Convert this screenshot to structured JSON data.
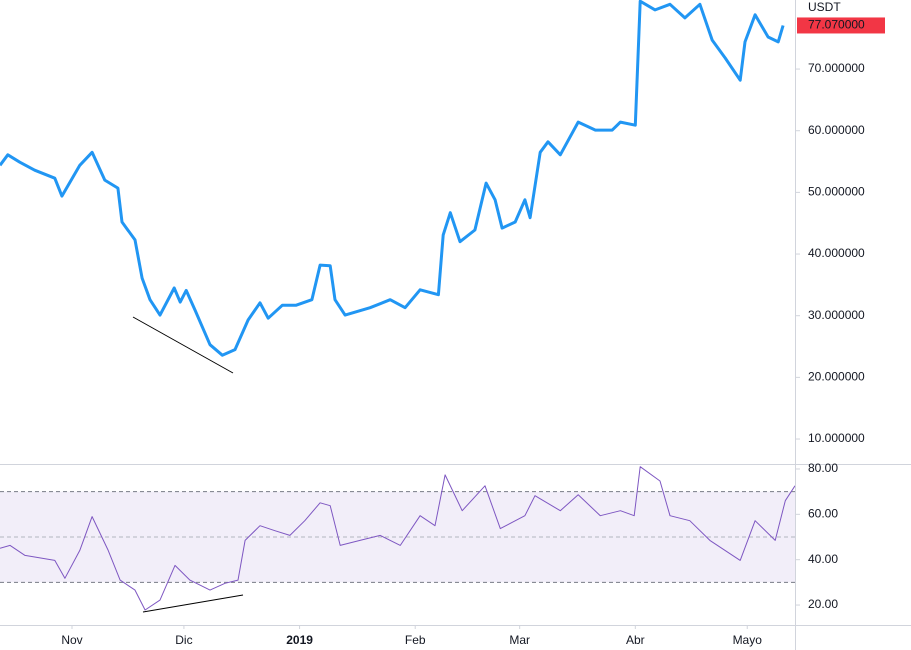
{
  "chart_data": [
    {
      "type": "line",
      "currency": "USDT",
      "last_value_label": "77.070000",
      "color": "#2196f3",
      "xlim": [
        -19.3,
        193.8
      ],
      "ylim": [
        5.95,
        81.2
      ],
      "yticks": [
        {
          "value": 10,
          "label": "10.000000"
        },
        {
          "value": 20,
          "label": "20.000000"
        },
        {
          "value": 30,
          "label": "30.000000"
        },
        {
          "value": 40,
          "label": "40.000000"
        },
        {
          "value": 50,
          "label": "50.000000"
        },
        {
          "value": 60,
          "label": "60.000000"
        },
        {
          "value": 70,
          "label": "70.000000"
        }
      ],
      "x": [
        -19.3,
        -17.2,
        -14,
        -10,
        -4.6,
        -2.7,
        2.1,
        5.4,
        8.8,
        12.3,
        13.4,
        16.9,
        18.8,
        20.9,
        23.6,
        27.4,
        29,
        30.6,
        33,
        37,
        40.3,
        43.7,
        47.2,
        50.4,
        52.6,
        56.4,
        60.1,
        64.3,
        66.5,
        69.2,
        70.5,
        73.2,
        79.9,
        85.3,
        89.3,
        93.3,
        98.2,
        99.5,
        101.4,
        104,
        108,
        111,
        113.4,
        115.3,
        118.8,
        121.4,
        122.8,
        125.5,
        127.6,
        130.9,
        135.7,
        140.3,
        144.8,
        147,
        151,
        152.3,
        156.3,
        160.3,
        164.3,
        168.3,
        171.6,
        175.1,
        179.1,
        180.4,
        183.1,
        186.6,
        189.3,
        190.6
      ],
      "values": [
        54.4,
        56.1,
        54.9,
        53.6,
        52.3,
        49.4,
        54.4,
        56.5,
        52.0,
        50.7,
        45.2,
        42.3,
        36.1,
        32.6,
        30.1,
        34.5,
        32.2,
        34.1,
        30.9,
        25.3,
        23.6,
        24.5,
        29.3,
        32.1,
        29.6,
        31.7,
        31.7,
        32.6,
        38.2,
        38.1,
        32.6,
        30.1,
        31.3,
        32.6,
        31.3,
        34.2,
        33.4,
        43.1,
        46.7,
        42.0,
        43.9,
        51.5,
        48.8,
        44.2,
        45.2,
        48.8,
        45.9,
        56.5,
        58.2,
        56.1,
        61.4,
        60.1,
        60.1,
        61.4,
        60.9,
        81,
        79.6,
        80.5,
        78.3,
        80.5,
        74.7,
        71.8,
        68.2,
        74.4,
        78.8,
        75.2,
        74.4,
        77.07
      ]
    },
    {
      "type": "line",
      "color": "#7e57c2",
      "band_fill": "#7e57c2",
      "bands": [
        30,
        70
      ],
      "midline": 50,
      "xlim": [
        -19.3,
        193.8
      ],
      "ylim": [
        11.2,
        81.75
      ],
      "yticks": [
        {
          "value": 20,
          "label": "20.00"
        },
        {
          "value": 40,
          "label": "40.00"
        },
        {
          "value": 60,
          "label": "60.00"
        },
        {
          "value": 80,
          "label": "80.00"
        }
      ],
      "xticks": [
        {
          "value": 0,
          "label": "Nov"
        },
        {
          "value": 30,
          "label": "Dic"
        },
        {
          "value": 61,
          "label": "2019"
        },
        {
          "value": 92,
          "label": "Feb"
        },
        {
          "value": 120,
          "label": "Mar"
        },
        {
          "value": 151,
          "label": "Abr"
        },
        {
          "value": 181,
          "label": "Mayo"
        }
      ],
      "x": [
        -19.3,
        -16.6,
        -12.6,
        -4.6,
        -1.9,
        2.1,
        5.4,
        9.7,
        12.9,
        16.9,
        19.6,
        23.6,
        27.6,
        31.6,
        37,
        41,
        44.5,
        46.4,
        50.4,
        54.4,
        58.4,
        62.4,
        66.5,
        69.2,
        71.9,
        77.2,
        82.6,
        88,
        93.3,
        97.3,
        100,
        104.6,
        110.7,
        114.8,
        121.4,
        124.1,
        130.9,
        135.7,
        141.6,
        147,
        150.7,
        152.3,
        157.6,
        160.3,
        165.6,
        171,
        179.1,
        183.1,
        188.5,
        191.2,
        193.8
      ],
      "values": [
        45,
        46.3,
        41.9,
        39.7,
        31.8,
        44.1,
        59,
        44.1,
        31,
        26.6,
        17.8,
        22.2,
        37.5,
        31,
        26.6,
        29.6,
        31,
        48.5,
        55,
        52.8,
        50.7,
        57.2,
        65.1,
        63.8,
        46.3,
        48.5,
        50.7,
        46.3,
        59.4,
        55,
        77.4,
        61.6,
        72.6,
        53.7,
        59.4,
        68.2,
        61.6,
        68.6,
        59.4,
        61.6,
        59.4,
        81,
        74.7,
        59.4,
        57.2,
        48.5,
        39.7,
        57.2,
        48.5,
        66,
        72.6
      ]
    }
  ]
}
